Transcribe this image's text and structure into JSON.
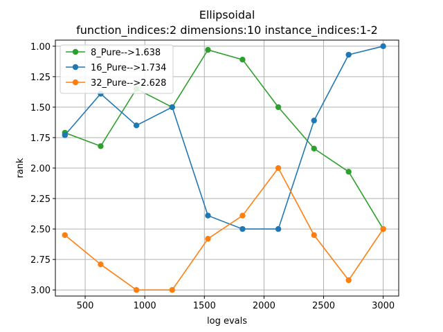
{
  "chart_data": {
    "type": "line",
    "title": "Ellipsoidal",
    "subtitle": "function_indices:2 dimensions:10 instance_indices:1-2",
    "xlabel": "log evals",
    "ylabel": "rank",
    "xlim": [
      250,
      3130
    ],
    "ylim": [
      3.05,
      0.95
    ],
    "y_inverted": true,
    "xticks": [
      500,
      1000,
      1500,
      2000,
      2500,
      3000
    ],
    "yticks": [
      1.0,
      1.25,
      1.5,
      1.75,
      2.0,
      2.25,
      2.5,
      2.75,
      3.0
    ],
    "grid": true,
    "legend_position": "upper-left",
    "x": [
      330,
      630,
      930,
      1230,
      1530,
      1820,
      2120,
      2420,
      2710,
      3000
    ],
    "series": [
      {
        "name": "8_Pure-->1.638",
        "color": "#2ca02c",
        "values": [
          1.71,
          1.82,
          1.35,
          1.5,
          1.03,
          1.11,
          1.5,
          1.84,
          2.03,
          2.5
        ]
      },
      {
        "name": "16_Pure-->1.734",
        "color": "#1f77b4",
        "values": [
          1.73,
          1.39,
          1.65,
          1.5,
          2.39,
          2.5,
          2.5,
          1.61,
          1.07,
          1.0
        ]
      },
      {
        "name": "32_Pure-->2.628",
        "color": "#ff7f0e",
        "values": [
          2.55,
          2.79,
          3.0,
          3.0,
          2.58,
          2.39,
          2.0,
          2.55,
          2.92,
          2.5
        ]
      }
    ]
  }
}
